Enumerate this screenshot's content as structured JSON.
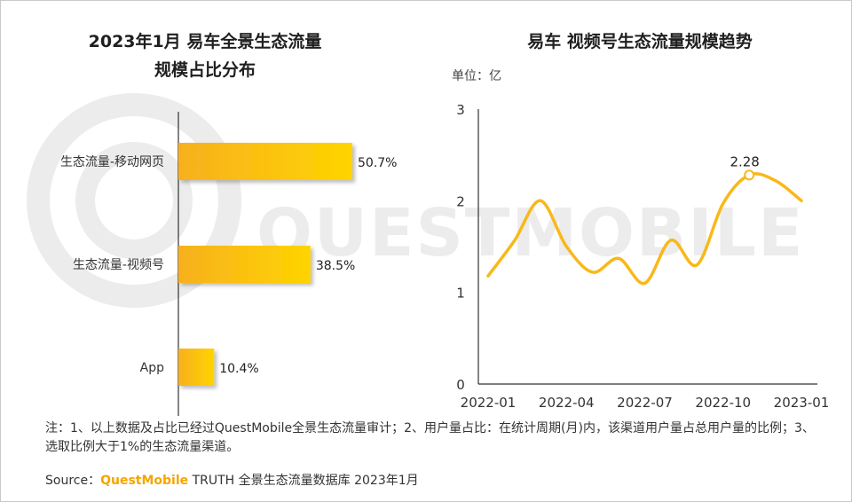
{
  "colors": {
    "bar_gradient_start": "#f7b01e",
    "bar_gradient_end": "#ffd400",
    "line": "#f9b81a",
    "watermark": "#ececec"
  },
  "watermark_text": "QUESTMOBILE",
  "unit_label": "单位：亿",
  "footnote": {
    "text": "注：1、以上数据及占比已经过QuestMobile全景生态流量审计；2、用户量占比：在统计周期(月)内，该渠道用户量占总用户量的比例；3、选取比例大于1%的生态流量渠道。",
    "source_label": "Source：",
    "source_brand": "QuestMobile",
    "source_rest": " TRUTH 全景生态流量数据库 2023年1月"
  },
  "chart_data": [
    {
      "type": "bar",
      "orientation": "horizontal",
      "title_lines": [
        "2023年1月 易车全景生态流量",
        "规模占比分布"
      ],
      "categories": [
        "生态流量-移动网页",
        "生态流量-视频号",
        "App"
      ],
      "values": [
        50.7,
        38.5,
        10.4
      ],
      "value_labels": [
        "50.7%",
        "38.5%",
        "10.4%"
      ],
      "unit": "%",
      "grid": false
    },
    {
      "type": "line",
      "title": "易车 视频号生态流量规模趋势",
      "ylabel": "单位：亿",
      "x": [
        "2022-01",
        "2022-02",
        "2022-03",
        "2022-04",
        "2022-05",
        "2022-06",
        "2022-07",
        "2022-08",
        "2022-09",
        "2022-10",
        "2022-11",
        "2022-12",
        "2023-01"
      ],
      "x_tick_labels": [
        "2022-01",
        "2022-04",
        "2022-07",
        "2022-10",
        "2023-01"
      ],
      "values": [
        1.18,
        1.56,
        2.0,
        1.5,
        1.22,
        1.37,
        1.1,
        1.57,
        1.3,
        1.97,
        2.28,
        2.22,
        2.0
      ],
      "annotation": {
        "index": 10,
        "label": "2.28"
      },
      "ylim": [
        0,
        3
      ],
      "yticks": [
        0,
        1,
        2,
        3
      ],
      "grid": false,
      "smooth": true
    }
  ]
}
